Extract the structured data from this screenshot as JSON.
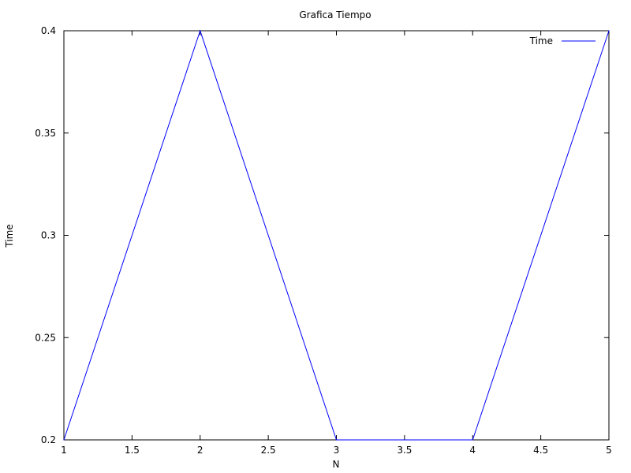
{
  "chart_data": {
    "type": "line",
    "title": "Grafica Tiempo",
    "xlabel": "N",
    "ylabel": "Time",
    "xlim": [
      1,
      5
    ],
    "ylim": [
      0.2,
      0.4
    ],
    "x_ticks": [
      1,
      1.5,
      2,
      2.5,
      3,
      3.5,
      4,
      4.5,
      5
    ],
    "x_tick_labels": [
      "1",
      "1.5",
      "2",
      "2.5",
      "3",
      "3.5",
      "4",
      "4.5",
      "5"
    ],
    "y_ticks": [
      0.2,
      0.25,
      0.3,
      0.35,
      0.4
    ],
    "y_tick_labels": [
      "0.2",
      "0.25",
      "0.3",
      "0.35",
      "0.4"
    ],
    "grid": false,
    "legend_position": "top-right",
    "series": [
      {
        "name": "Time",
        "color": "#0000ff",
        "x": [
          1,
          2,
          3,
          4,
          5
        ],
        "y": [
          0.2,
          0.4,
          0.2,
          0.2,
          0.4
        ]
      }
    ]
  }
}
